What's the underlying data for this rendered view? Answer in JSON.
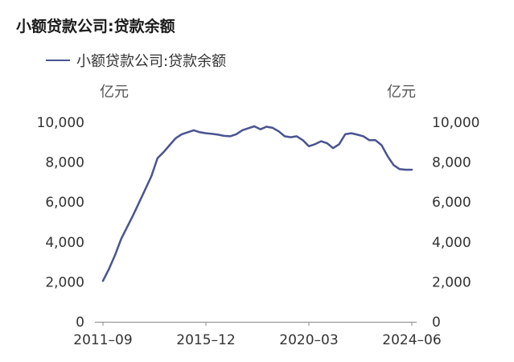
{
  "colors": {
    "series": "#4a5490",
    "title": "#1a1a1a",
    "axis_text": "#333333",
    "unit_text": "#555555"
  },
  "chart_data": {
    "type": "line",
    "title": "小额贷款公司:贷款余额",
    "y_unit_left": "亿元",
    "y_unit_right": "亿元",
    "ylim": [
      0,
      10000
    ],
    "y_ticks": [
      0,
      2000,
      4000,
      6000,
      8000,
      10000
    ],
    "y_tick_labels": [
      "0",
      "2,000",
      "4,000",
      "6,000",
      "8,000",
      "10,000"
    ],
    "x_tick_labels": [
      "2011–09",
      "2015–12",
      "2020–03",
      "2024–06"
    ],
    "grid": false,
    "legend": "top-left",
    "series": [
      {
        "name": "小额贷款公司:贷款余额",
        "x": [
          "2011-09",
          "2011-12",
          "2012-03",
          "2012-06",
          "2012-09",
          "2012-12",
          "2013-03",
          "2013-06",
          "2013-09",
          "2013-12",
          "2014-03",
          "2014-06",
          "2014-09",
          "2014-12",
          "2015-03",
          "2015-06",
          "2015-09",
          "2015-12",
          "2016-03",
          "2016-06",
          "2016-09",
          "2016-12",
          "2017-03",
          "2017-06",
          "2017-09",
          "2017-12",
          "2018-03",
          "2018-06",
          "2018-09",
          "2018-12",
          "2019-03",
          "2019-06",
          "2019-09",
          "2019-12",
          "2020-03",
          "2020-06",
          "2020-09",
          "2020-12",
          "2021-03",
          "2021-06",
          "2021-09",
          "2021-12",
          "2022-03",
          "2022-06",
          "2022-09",
          "2022-12",
          "2023-03",
          "2023-06",
          "2023-09",
          "2023-12",
          "2024-03",
          "2024-06"
        ],
        "values": [
          2050,
          2650,
          3350,
          4150,
          4750,
          5350,
          6000,
          6650,
          7300,
          8200,
          8500,
          8850,
          9200,
          9400,
          9500,
          9600,
          9500,
          9450,
          9420,
          9380,
          9320,
          9300,
          9400,
          9600,
          9700,
          9800,
          9650,
          9780,
          9720,
          9550,
          9300,
          9250,
          9300,
          9100,
          8800,
          8900,
          9050,
          8950,
          8700,
          8900,
          9400,
          9450,
          9380,
          9300,
          9100,
          9100,
          8850,
          8300,
          7850,
          7650,
          7620,
          7620
        ]
      }
    ]
  }
}
